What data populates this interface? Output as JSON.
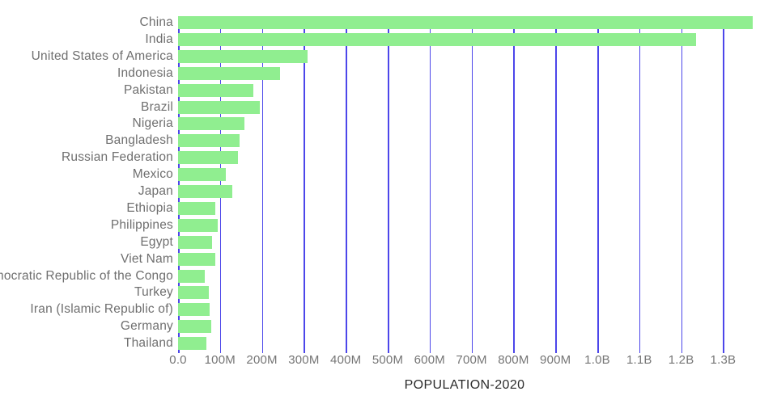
{
  "chart_data": {
    "type": "bar",
    "orientation": "horizontal",
    "title": "",
    "xlabel": "POPULATION-2020",
    "ylabel": "",
    "grid": true,
    "legend": false,
    "categories": [
      "China",
      "India",
      "United States of America",
      "Indonesia",
      "Pakistan",
      "Brazil",
      "Nigeria",
      "Bangladesh",
      "Russian Federation",
      "Mexico",
      "Japan",
      "Ethiopia",
      "Philippines",
      "Egypt",
      "Viet Nam",
      "Democratic Republic of the Congo",
      "Turkey",
      "Iran (Islamic Republic of)",
      "Germany",
      "Thailand"
    ],
    "values_millions": [
      1371,
      1235,
      309,
      243,
      179,
      195,
      159,
      147,
      143,
      113,
      129,
      89,
      95,
      82,
      89,
      64,
      73,
      75,
      80,
      67
    ],
    "x_axis": {
      "range_millions": [
        0,
        1430
      ],
      "ticks": [
        {
          "label": "0.0",
          "value": 0
        },
        {
          "label": "100M",
          "value": 100
        },
        {
          "label": "200M",
          "value": 200
        },
        {
          "label": "300M",
          "value": 300
        },
        {
          "label": "400M",
          "value": 400
        },
        {
          "label": "500M",
          "value": 500
        },
        {
          "label": "600M",
          "value": 600
        },
        {
          "label": "700M",
          "value": 700
        },
        {
          "label": "800M",
          "value": 800
        },
        {
          "label": "900M",
          "value": 900
        },
        {
          "label": "1.0B",
          "value": 1000
        },
        {
          "label": "1.1B",
          "value": 1100
        },
        {
          "label": "1.2B",
          "value": 1200
        },
        {
          "label": "1.3B",
          "value": 1300
        }
      ]
    },
    "colors": {
      "bar": "#90EE90",
      "gridline": "#4C46EA",
      "tick_text": "#757575",
      "category_text": "#6F6F6F",
      "axis_title_text": "#2B2B2B",
      "background": "#FFFFFF"
    }
  }
}
